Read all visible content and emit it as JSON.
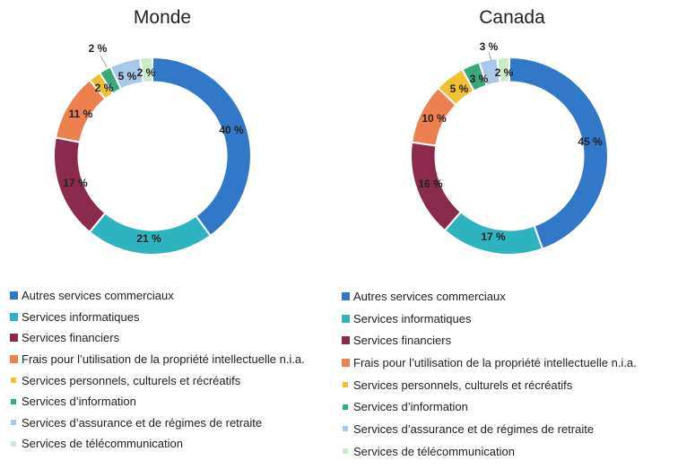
{
  "chart_data": [
    {
      "type": "pie",
      "title": "Monde",
      "categories": [
        "Autres services commerciaux",
        "Services informatiques",
        "Services financiers",
        "Frais pour l’utilisation de la propriété intellectuelle n.i.a.",
        "Services personnels, culturels et récréatifs",
        "Services d’information",
        "Services d’assurance et de régimes de retraite",
        "Services de télécommunication"
      ],
      "values": [
        40,
        21,
        17,
        11,
        2,
        2,
        5,
        2
      ],
      "data_labels": [
        "40 %",
        "21 %",
        "17 %",
        "11 %",
        "2 %",
        "2 %",
        "5 %",
        "2 %"
      ],
      "colors": [
        "#3278c8",
        "#2db4c0",
        "#8c2a4e",
        "#ee8050",
        "#f0c030",
        "#3aa878",
        "#a8c8e8",
        "#c8ecc8"
      ],
      "hole": 0.75,
      "legend_position": "bottom"
    },
    {
      "type": "pie",
      "title": "Canada",
      "categories": [
        "Autres services commerciaux",
        "Services informatiques",
        "Services financiers",
        "Frais pour l’utilisation de la propriété intellectuelle n.i.a.",
        "Services personnels, culturels et récréatifs",
        "Services d’information",
        "Services d’assurance et de régimes de retraite",
        "Services de télécommunication"
      ],
      "values": [
        45,
        17,
        16,
        10,
        5,
        3,
        3,
        2
      ],
      "data_labels": [
        "45 %",
        "17 %",
        "16 %",
        "10 %",
        "5 %",
        "3 %",
        "3 %",
        "2 %"
      ],
      "colors": [
        "#3278c8",
        "#2db4c0",
        "#8c2a4e",
        "#ee8050",
        "#f0c030",
        "#3aa878",
        "#a8c8e8",
        "#c8ecc8"
      ],
      "hole": 0.75,
      "legend_position": "bottom"
    }
  ]
}
